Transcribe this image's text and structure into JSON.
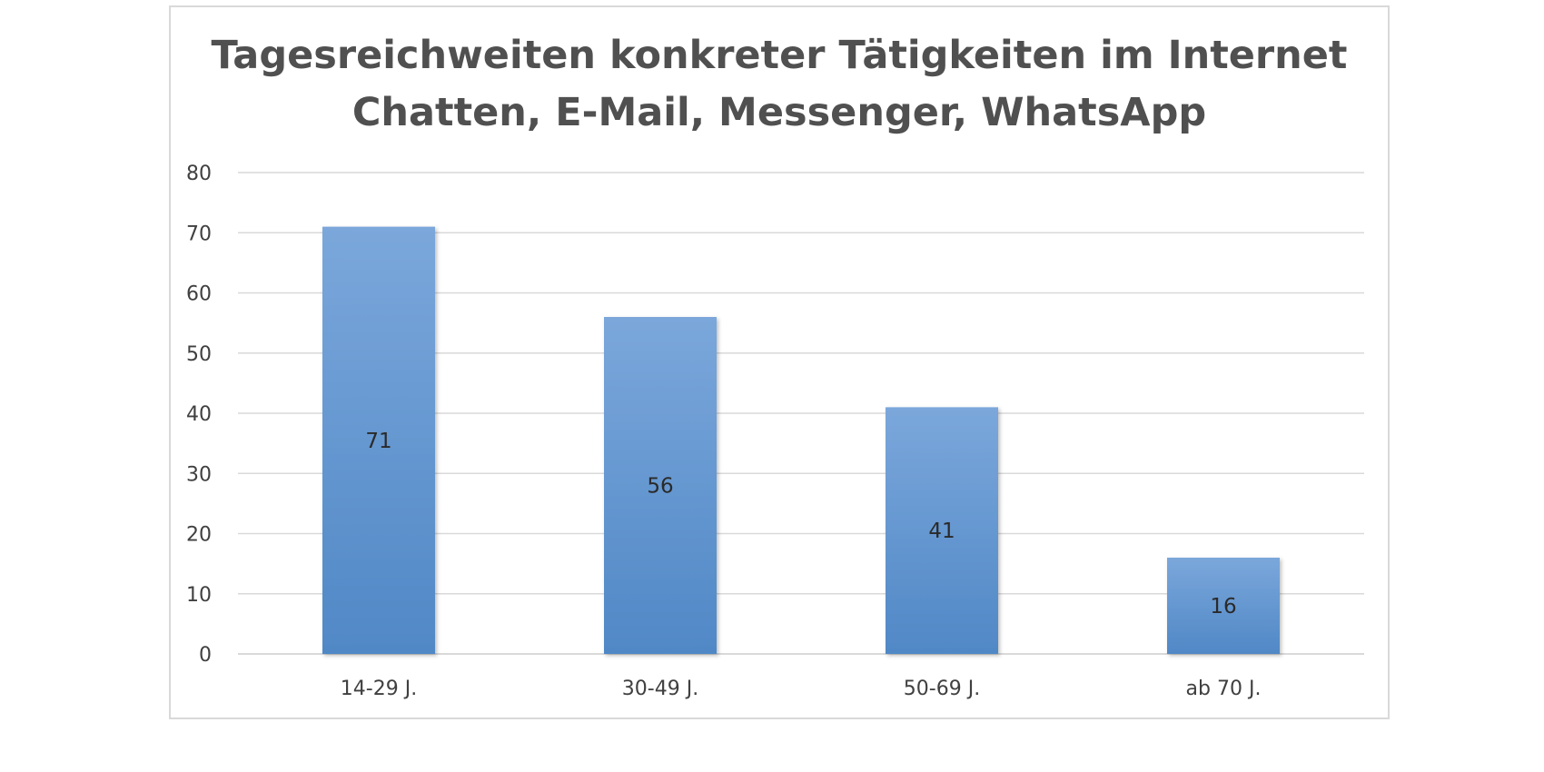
{
  "chart_data": {
    "type": "bar",
    "title": "Tagesreichweiten konkreter Tätigkeiten im Internet",
    "subtitle": "Chatten, E-Mail, Messenger, WhatsApp",
    "categories": [
      "14-29 J.",
      "30-49 J.",
      "50-69 J.",
      "ab 70 J."
    ],
    "values": [
      71,
      56,
      41,
      16
    ],
    "data_labels": [
      "71",
      "56",
      "41",
      "16"
    ],
    "xlabel": "",
    "ylabel": "",
    "ylim": [
      0,
      80
    ],
    "yticks": [
      "0",
      "10",
      "20",
      "30",
      "40",
      "50",
      "60",
      "70",
      "80"
    ],
    "grid": true,
    "legend": "none",
    "colors": {
      "bar_top": "#7ba7db",
      "bar_bottom": "#5088c6",
      "grid": "#d9d9d9",
      "text": "#404040",
      "title": "#505050"
    }
  }
}
